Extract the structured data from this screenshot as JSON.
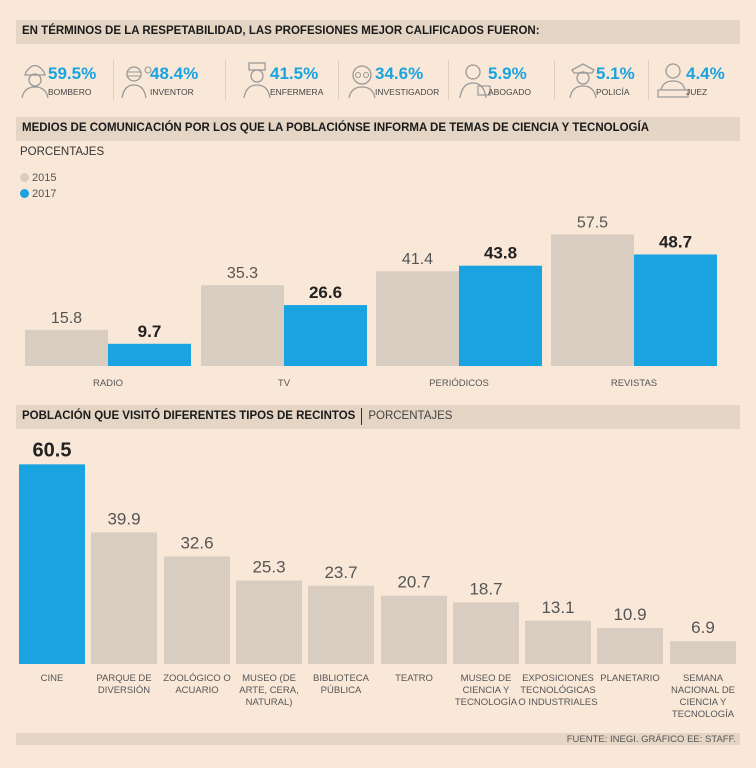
{
  "professions": {
    "title": "EN TÉRMINOS DE LA RESPETABILIDAD, LAS PROFESIONES MEJOR CALIFICADOS FUERON:",
    "items": [
      {
        "pct": "59.5%",
        "name": "BOMBERO",
        "icon": "firefighter-icon"
      },
      {
        "pct": "48.4%",
        "name": "INVENTOR",
        "icon": "inventor-icon"
      },
      {
        "pct": "41.5%",
        "name": "ENFERMERA",
        "icon": "nurse-icon"
      },
      {
        "pct": "34.6%",
        "name": "INVESTIGADOR",
        "icon": "researcher-icon"
      },
      {
        "pct": "5.9%",
        "name": "ABOGADO",
        "icon": "lawyer-icon"
      },
      {
        "pct": "5.1%",
        "name": "POLICÍA",
        "icon": "police-icon"
      },
      {
        "pct": "4.4%",
        "name": "JUEZ",
        "icon": "judge-icon"
      }
    ]
  },
  "media": {
    "title": "MEDIOS DE COMUNICACIÓN POR LOS QUE LA POBLACIÓNSE INFORMA DE TEMAS DE CIENCIA Y TECNOLOGÍA",
    "unit": "PORCENTAJES"
  },
  "venues": {
    "title": "POBLACIÓN QUE VISITÓ DIFERENTES TIPOS DE RECINTOS",
    "unit": "PORCENTAJES"
  },
  "footer": "FUENTE: INEGI. GRÁFICO EE: STAFF.",
  "colors": {
    "beige": "#d9cdc1",
    "blue": "#19a3e0",
    "background": "#f9e8d8",
    "header": "#e5d5c4"
  },
  "chart_data": [
    {
      "type": "bar",
      "title": "MEDIOS DE COMUNICACIÓN POR LOS QUE LA POBLACIÓNSE INFORMA DE TEMAS DE CIENCIA Y TECNOLOGÍA",
      "ylabel": "PORCENTAJES",
      "categories": [
        "RADIO",
        "TV",
        "PERIÓDICOS",
        "REVISTAS"
      ],
      "series": [
        {
          "name": "2015",
          "values": [
            15.8,
            35.3,
            41.4,
            57.5
          ],
          "labels": [
            "15.8",
            "35.3",
            "41.4",
            "57.5"
          ],
          "color": "#d9cdc1"
        },
        {
          "name": "2017",
          "values": [
            9.7,
            26.6,
            43.8,
            48.7
          ],
          "labels": [
            "9.7",
            "26.6",
            "43.8",
            "48.7"
          ],
          "color": "#19a3e0"
        }
      ],
      "ylim": [
        0,
        60
      ],
      "legend": "top-left"
    },
    {
      "type": "bar",
      "title": "POBLACIÓN QUE VISITÓ DIFERENTES TIPOS DE RECINTOS",
      "ylabel": "PORCENTAJES",
      "categories": [
        [
          "CINE"
        ],
        [
          "PARQUE DE",
          "DIVERSIÓN"
        ],
        [
          "ZOOLÓGICO O",
          "ACUARIO"
        ],
        [
          "MUSEO (DE",
          "ARTE, CERA,",
          "NATURAL)"
        ],
        [
          "BIBLIOTECA",
          "PÚBLICA"
        ],
        [
          "TEATRO"
        ],
        [
          "MUSEO DE",
          "CIENCIA Y",
          "TECNOLOGÍA"
        ],
        [
          "EXPOSICIONES",
          "TECNOLÓGICAS",
          "O INDUSTRIALES"
        ],
        [
          "PLANETARIO"
        ],
        [
          "SEMANA",
          "NACIONAL DE",
          "CIENCIA Y",
          "TECNOLOGÍA"
        ]
      ],
      "values": [
        60.5,
        39.9,
        32.6,
        25.3,
        23.7,
        20.7,
        18.7,
        13.1,
        10.9,
        6.9
      ],
      "labels": [
        "60.5",
        "39.9",
        "32.6",
        "25.3",
        "23.7",
        "20.7",
        "18.7",
        "13.1",
        "10.9",
        "6.9"
      ],
      "highlight_index": 0,
      "ylim": [
        0,
        62
      ]
    }
  ]
}
